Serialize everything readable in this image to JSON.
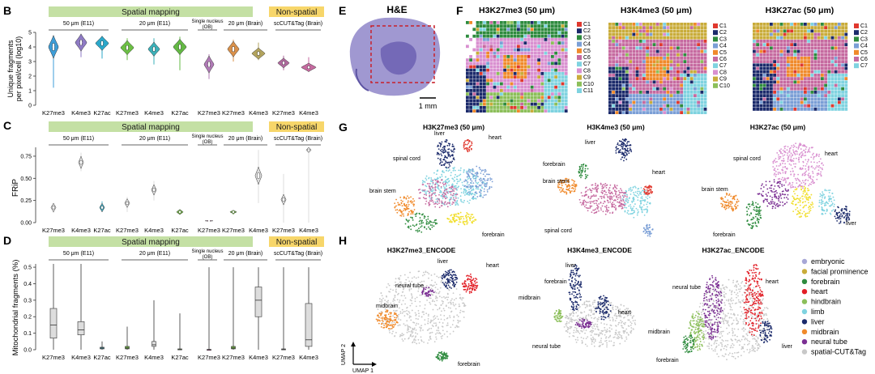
{
  "panels": {
    "B": {
      "label": "B",
      "ylabel_lines": [
        "Unique fragments",
        "per pixel/cell (log10)"
      ],
      "yticks": [
        0,
        1,
        2,
        3,
        4,
        5
      ],
      "groups": [
        {
          "header": "Spatial mapping",
          "subgroups": [
            {
              "label": "50 μm (E11)",
              "cats": [
                "K27me3",
                "K4me3",
                "K27ac"
              ]
            },
            {
              "label": "20 μm (E11)",
              "cats": [
                "K27me3",
                "K4me3",
                "K27ac"
              ]
            },
            {
              "label": "Single nucleus (OB)",
              "cats": [
                "K27me3"
              ]
            },
            {
              "label": "20 μm (Brain)",
              "cats": [
                "K27me3",
                "K4me3"
              ]
            }
          ]
        },
        {
          "header": "Non-spatial",
          "subgroups": [
            {
              "label": "scCUT&Tag (Brain)",
              "cats": [
                "K27me3",
                "K4me3"
              ]
            }
          ]
        }
      ]
    },
    "C": {
      "label": "C",
      "ylabel": "FRiP",
      "yticks": [
        "0.00",
        "0.25",
        "0.50",
        "0.75"
      ],
      "groups": [
        {
          "header": "Spatial mapping",
          "subgroups": [
            {
              "label": "50 μm (E11)"
            },
            {
              "label": "20 μm (E11)"
            },
            {
              "label": "Single nucleus (OB)"
            },
            {
              "label": "20 μm (Brain)"
            }
          ]
        },
        {
          "header": "Non-spatial",
          "subgroups": [
            {
              "label": "scCUT&Tag (Brain)"
            }
          ]
        }
      ]
    },
    "D": {
      "label": "D",
      "ylabel": "Mitochondrial fragments (%)",
      "yticks": [
        "0.0",
        "0.1",
        "0.2",
        "0.3",
        "0.4",
        "0.5"
      ],
      "groups": [
        {
          "header": "Spatial mapping",
          "subgroups": [
            {
              "label": "50 μm (E11)"
            },
            {
              "label": "20 μm (E11)"
            },
            {
              "label": "Single nucleus (OB)"
            },
            {
              "label": "20 μm (Brain)"
            }
          ]
        },
        {
          "header": "Non-spatial",
          "subgroups": [
            {
              "label": "scCUT&Tag (Brain)"
            }
          ]
        }
      ]
    },
    "E": {
      "label": "E",
      "title": "H&E",
      "scalebar": "1 mm"
    },
    "F": {
      "label": "F",
      "maps": [
        {
          "title": "H3K27me3 (50 μm)",
          "legend": [
            "C1",
            "C2",
            "C3",
            "C4",
            "C5",
            "C6",
            "C7",
            "C8",
            "C9",
            "C10",
            "C11"
          ]
        },
        {
          "title": "H3K4me3 (50 μm)",
          "legend": [
            "C1",
            "C2",
            "C3",
            "C4",
            "C5",
            "C6",
            "C7",
            "C8",
            "C9",
            "C10"
          ]
        },
        {
          "title": "H3K27ac (50 μm)",
          "legend": [
            "C1",
            "C2",
            "C3",
            "C4",
            "C5",
            "C6",
            "C7"
          ]
        }
      ]
    },
    "G": {
      "label": "G",
      "umaps": [
        {
          "title": "H3K27me3 (50 μm)",
          "annotations": [
            "liver",
            "heart",
            "spinal cord",
            "brain stem",
            "forebrain"
          ]
        },
        {
          "title": "H3K4me3 (50 μm)",
          "annotations": [
            "liver",
            "forebrain",
            "brain stem",
            "heart",
            "spinal cord"
          ]
        },
        {
          "title": "H3K27ac (50 μm)",
          "annotations": [
            "spinal cord",
            "heart",
            "brain stem",
            "liver",
            "forebrain"
          ]
        }
      ]
    },
    "H": {
      "label": "H",
      "umaps": [
        {
          "title": "H3K27me3_ENCODE",
          "annotations": [
            "liver",
            "heart",
            "neural tube",
            "midbrain",
            "forebrain"
          ]
        },
        {
          "title": "H3K4me3_ENCODE",
          "annotations": [
            "liver",
            "forebrain",
            "midbrain",
            "heart",
            "neural tube"
          ]
        },
        {
          "title": "H3K27ac_ENCODE",
          "annotations": [
            "neural tube",
            "heart",
            "midbrain",
            "forebrain",
            "liver"
          ]
        }
      ],
      "axis_labels": {
        "x": "UMAP 1",
        "y": "UMAP 2"
      },
      "legend": [
        {
          "label": "embryonic",
          "color": "#a7a7d6"
        },
        {
          "label": "facial prominence",
          "color": "#c9ac3a"
        },
        {
          "label": "forebrain",
          "color": "#2e8b3e"
        },
        {
          "label": "heart",
          "color": "#e21e26"
        },
        {
          "label": "hindbrain",
          "color": "#8cbf5a"
        },
        {
          "label": "limb",
          "color": "#7fd3e0"
        },
        {
          "label": "liver",
          "color": "#1b2a6b"
        },
        {
          "label": "midbrain",
          "color": "#f08a2b"
        },
        {
          "label": "neural tube",
          "color": "#7b2f93"
        },
        {
          "label": "spatial-CUT&Tag",
          "color": "#c8c8c8"
        }
      ]
    }
  },
  "colors": {
    "violin_palette": [
      "#3e9ed8",
      "#8e7ac4",
      "#2ba7c9",
      "#6cbf44",
      "#3bb0b8",
      "#63b844",
      "#b07ab6",
      "#d9904a",
      "#b2a35d",
      "#b06a9e",
      "#c66aa0"
    ],
    "spatial_header": "#c4e0a4",
    "nonspatial_header": "#f7d66a",
    "cluster_palette": [
      "#e0382e",
      "#1b2a6b",
      "#2e8b3e",
      "#7b9fd6",
      "#f08a2b",
      "#c66aa0",
      "#7fd3e0",
      "#d990d0",
      "#c9ac3a",
      "#8cbf5a",
      "#7fd3e0"
    ]
  }
}
